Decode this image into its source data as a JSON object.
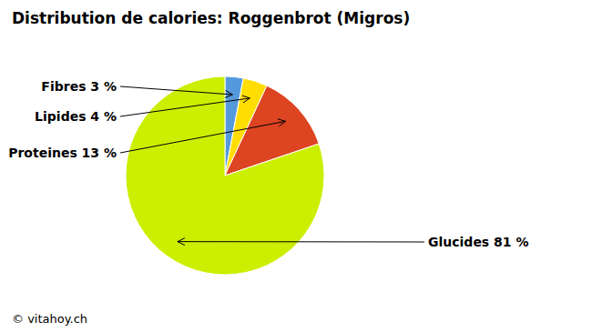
{
  "chart_data": {
    "type": "pie",
    "title": "Distribution de calories: Roggenbrot (Migros)",
    "categories": [
      "Fibres 3 %",
      "Lipides 4 %",
      "Proteines 13 %",
      "Glucides 81 %"
    ],
    "values": [
      3,
      4,
      13,
      81
    ],
    "colors": [
      "#5599DD",
      "#FFDD00",
      "#DD4422",
      "#CCEE00"
    ],
    "annotations": [
      "© vitahoy.ch"
    ]
  }
}
